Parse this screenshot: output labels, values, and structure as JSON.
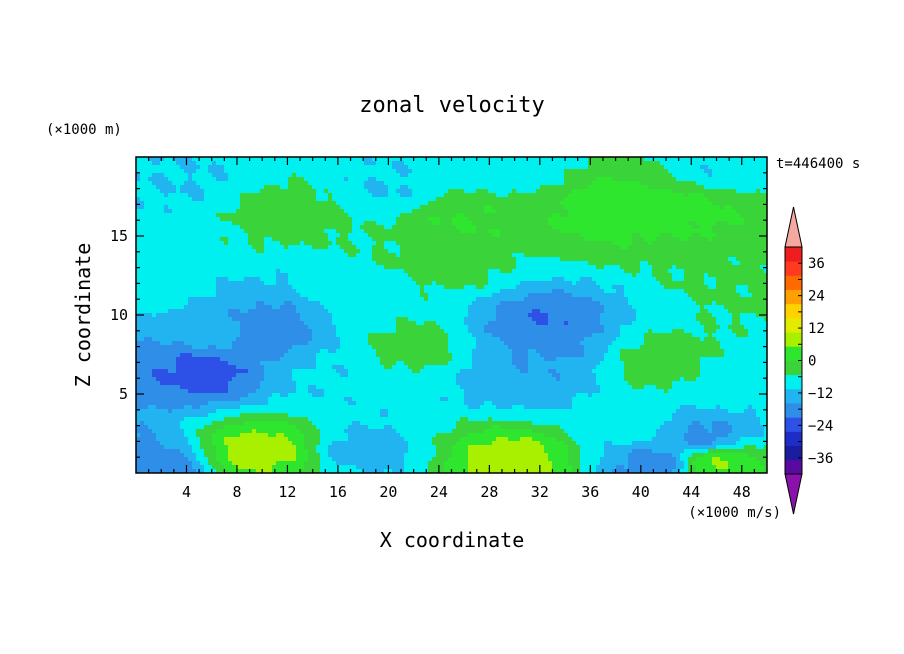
{
  "chart_data": {
    "type": "heatmap",
    "title": "zonal velocity",
    "xlabel": "X coordinate",
    "ylabel": "Z coordinate",
    "x_unit_label": "(×1000 m/s)",
    "y_unit_label": "(×1000 m)",
    "time_label": "t=446400 s",
    "xlim": [
      0,
      50
    ],
    "ylim": [
      0,
      20
    ],
    "x_ticks": [
      4,
      8,
      12,
      16,
      20,
      24,
      28,
      32,
      36,
      40,
      44,
      48
    ],
    "y_ticks": [
      5,
      10,
      15
    ],
    "colorbar": {
      "tick_values": [
        36,
        24,
        12,
        0,
        -12,
        -24,
        -36
      ],
      "levels": [
        -42,
        -36,
        -30,
        -24,
        -18,
        -12,
        -6,
        0,
        6,
        12,
        18,
        24,
        30,
        36,
        42
      ],
      "colors": [
        "#5a0aa0",
        "#1c1ca0",
        "#1e2cc8",
        "#2d50e6",
        "#2f8ee8",
        "#22b4f0",
        "#00f0f0",
        "#3ad43a",
        "#2ee62e",
        "#a8f000",
        "#e2ec00",
        "#ffd200",
        "#ffa000",
        "#ff6a00",
        "#ff3a1e",
        "#ee1e1e"
      ],
      "extend_low_color": "#8a12aa",
      "extend_high_color": "#f4a8a0"
    },
    "field_features": [
      {
        "x": 12,
        "z": 16.5,
        "value": 3
      },
      {
        "x": 38,
        "z": 16.8,
        "value": 10
      },
      {
        "x": 44,
        "z": 17,
        "value": 8
      },
      {
        "x": 26,
        "z": 16,
        "value": 6
      },
      {
        "x": 20,
        "z": 18.2,
        "value": -6
      },
      {
        "x": 4,
        "z": 18.5,
        "value": -6
      },
      {
        "x": 46,
        "z": 19,
        "value": -5
      },
      {
        "x": 30,
        "z": 19.5,
        "value": -4
      },
      {
        "x": 10,
        "z": 9,
        "value": -17
      },
      {
        "x": 5.5,
        "z": 6.4,
        "value": -20
      },
      {
        "x": 7,
        "z": 9,
        "value": -9
      },
      {
        "x": 32,
        "z": 8,
        "value": -13
      },
      {
        "x": 32,
        "z": 9.5,
        "value": -18
      },
      {
        "x": 31,
        "z": 6,
        "value": -11
      },
      {
        "x": 10,
        "z": 1.5,
        "value": 15
      },
      {
        "x": 30,
        "z": 0.8,
        "value": 16
      },
      {
        "x": 46,
        "z": 0.6,
        "value": 12
      },
      {
        "x": 1,
        "z": 0.4,
        "value": -16
      },
      {
        "x": 41,
        "z": 0.6,
        "value": -15
      },
      {
        "x": 45,
        "z": 2.3,
        "value": -14
      },
      {
        "x": 18,
        "z": 1.5,
        "value": -8
      },
      {
        "x": 22,
        "z": 8,
        "value": 3
      },
      {
        "x": 15.5,
        "z": 6,
        "value": -5
      },
      {
        "x": 42,
        "z": 7,
        "value": 4
      },
      {
        "x": 47,
        "z": 6,
        "value": -3
      },
      {
        "x": 1,
        "z": 12,
        "value": -2
      },
      {
        "x": 24.5,
        "z": 13,
        "value": 2
      },
      {
        "x": 19,
        "z": 11,
        "value": -2
      },
      {
        "x": 39,
        "z": 3,
        "value": -3
      },
      {
        "x": 48,
        "z": 12,
        "value": 1
      }
    ]
  }
}
